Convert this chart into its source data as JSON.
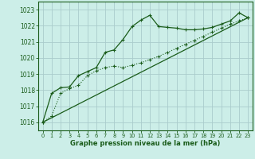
{
  "title": "Graphe pression niveau de la mer (hPa)",
  "background_color": "#cceee8",
  "grid_color": "#aacccc",
  "line_color": "#1a5c1a",
  "xlim": [
    -0.5,
    23.5
  ],
  "ylim": [
    1015.5,
    1023.5
  ],
  "yticks": [
    1016,
    1017,
    1018,
    1019,
    1020,
    1021,
    1022,
    1023
  ],
  "xticks": [
    0,
    1,
    2,
    3,
    4,
    5,
    6,
    7,
    8,
    9,
    10,
    11,
    12,
    13,
    14,
    15,
    16,
    17,
    18,
    19,
    20,
    21,
    22,
    23
  ],
  "series_dot_x": [
    0,
    1,
    2,
    3,
    4,
    5,
    6,
    7,
    8,
    9,
    10,
    11,
    12,
    13,
    14,
    15,
    16,
    17,
    18,
    19,
    20,
    21,
    22,
    23
  ],
  "series_dot_y": [
    1016.0,
    1016.4,
    1017.8,
    1018.1,
    1018.3,
    1018.9,
    1019.2,
    1019.4,
    1019.5,
    1019.4,
    1019.55,
    1019.7,
    1019.9,
    1020.1,
    1020.35,
    1020.6,
    1020.85,
    1021.1,
    1021.35,
    1021.6,
    1021.85,
    1022.1,
    1022.3,
    1022.5
  ],
  "series_solid_x": [
    0,
    1,
    2,
    3,
    4,
    5,
    6,
    7,
    8,
    9,
    10,
    11,
    12,
    13,
    14,
    15,
    16,
    17,
    18,
    19,
    20,
    21,
    22,
    23
  ],
  "series_solid_y": [
    1016.0,
    1017.8,
    1018.15,
    1018.2,
    1018.9,
    1019.15,
    1019.4,
    1020.35,
    1020.5,
    1021.15,
    1021.95,
    1022.35,
    1022.65,
    1021.95,
    1021.9,
    1021.85,
    1021.75,
    1021.75,
    1021.8,
    1021.9,
    1022.1,
    1022.3,
    1022.8,
    1022.5
  ],
  "trend_x": [
    0,
    23
  ],
  "trend_y": [
    1016.0,
    1022.5
  ]
}
